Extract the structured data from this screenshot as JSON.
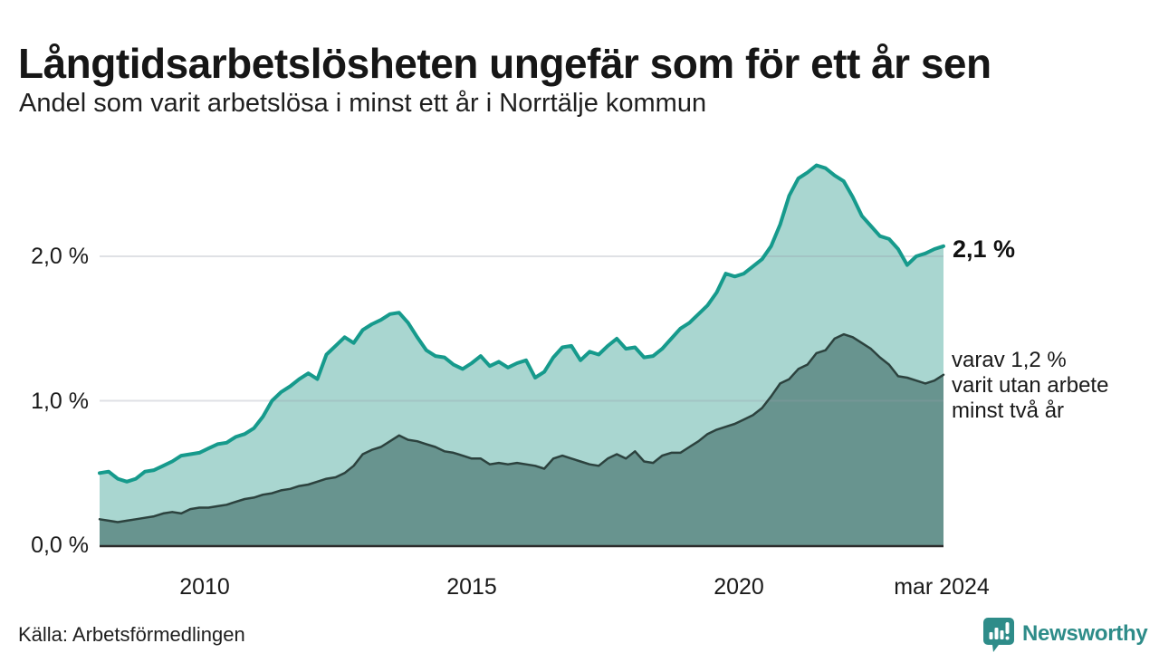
{
  "header": {
    "title": "Långtidsarbetslösheten ungefär som för ett år sen",
    "subtitle": "Andel som varit arbetslösa i minst ett år i Norrtälje kommun"
  },
  "source": "Källa: Arbetsförmedlingen",
  "logo": {
    "text": "Newsworthy",
    "color": "#2e8c89",
    "icon": "speech-bubble-bar-chart-icon"
  },
  "chart_data": {
    "type": "area",
    "title": "Långtidsarbetslösheten ungefär som för ett år sen",
    "subtitle": "Andel som varit arbetslösa i minst ett år i Norrtälje kommun",
    "unit": "%",
    "x_range_years": [
      2008.3,
      2024.25
    ],
    "x_ticks": [
      "2010",
      "2015",
      "2020",
      "mar 2024"
    ],
    "y_tick_labels": [
      "0,0 %",
      "1,0 %",
      "2,0 %"
    ],
    "y_tick_values": [
      0,
      1,
      2
    ],
    "ylim": [
      0,
      2.8
    ],
    "grid": true,
    "grid_color": "rgba(150,155,170,0.30)",
    "baseline_color": "#2b2b2b",
    "legend_position": "none",
    "annotations": {
      "total_label": "2,1 %",
      "subset_label_line1": "varav 1,2 %",
      "subset_label_line2": "varit utan arbete",
      "subset_label_line3": "minst två år"
    },
    "series": [
      {
        "name": "Andel arbetslösa minst ett år (totalt)",
        "stroke": "#169a8c",
        "fill": "#a9d6d0",
        "stroke_width": 4,
        "end_value": 2.1,
        "values": [
          0.5,
          0.51,
          0.46,
          0.44,
          0.46,
          0.51,
          0.52,
          0.55,
          0.58,
          0.62,
          0.63,
          0.64,
          0.67,
          0.7,
          0.71,
          0.75,
          0.77,
          0.81,
          0.89,
          1.0,
          1.06,
          1.1,
          1.15,
          1.19,
          1.15,
          1.32,
          1.38,
          1.44,
          1.4,
          1.49,
          1.53,
          1.56,
          1.6,
          1.61,
          1.54,
          1.44,
          1.35,
          1.31,
          1.3,
          1.25,
          1.22,
          1.26,
          1.31,
          1.24,
          1.27,
          1.23,
          1.26,
          1.28,
          1.16,
          1.2,
          1.3,
          1.37,
          1.38,
          1.28,
          1.34,
          1.32,
          1.38,
          1.43,
          1.36,
          1.37,
          1.3,
          1.31,
          1.36,
          1.43,
          1.5,
          1.54,
          1.6,
          1.66,
          1.75,
          1.88,
          1.86,
          1.88,
          1.93,
          1.98,
          2.07,
          2.22,
          2.42,
          2.54,
          2.58,
          2.63,
          2.61,
          2.56,
          2.52,
          2.41,
          2.28,
          2.21,
          2.14,
          2.12,
          2.05,
          1.94,
          2.0,
          2.02,
          2.05,
          2.07
        ]
      },
      {
        "name": "varav arbetslösa minst två år",
        "stroke": "#2c423e",
        "fill": "#68948f",
        "stroke_width": 2.5,
        "end_value": 1.2,
        "values": [
          0.18,
          0.17,
          0.16,
          0.17,
          0.18,
          0.19,
          0.2,
          0.22,
          0.23,
          0.22,
          0.25,
          0.26,
          0.26,
          0.27,
          0.28,
          0.3,
          0.32,
          0.33,
          0.35,
          0.36,
          0.38,
          0.39,
          0.41,
          0.42,
          0.44,
          0.46,
          0.47,
          0.5,
          0.55,
          0.63,
          0.66,
          0.68,
          0.72,
          0.76,
          0.73,
          0.72,
          0.7,
          0.68,
          0.65,
          0.64,
          0.62,
          0.6,
          0.6,
          0.56,
          0.57,
          0.56,
          0.57,
          0.56,
          0.55,
          0.53,
          0.6,
          0.62,
          0.6,
          0.58,
          0.56,
          0.55,
          0.6,
          0.63,
          0.6,
          0.65,
          0.58,
          0.57,
          0.62,
          0.64,
          0.64,
          0.68,
          0.72,
          0.77,
          0.8,
          0.82,
          0.84,
          0.87,
          0.9,
          0.95,
          1.03,
          1.12,
          1.15,
          1.22,
          1.25,
          1.33,
          1.35,
          1.43,
          1.46,
          1.44,
          1.4,
          1.36,
          1.3,
          1.25,
          1.17,
          1.16,
          1.14,
          1.12,
          1.14,
          1.18
        ]
      }
    ]
  }
}
